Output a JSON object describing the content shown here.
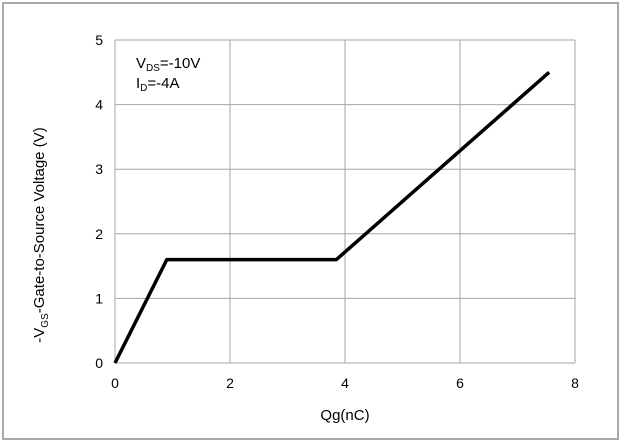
{
  "chart_data": {
    "type": "line",
    "xlabel": "Qg(nC)",
    "ylabel_prefix": "-V",
    "ylabel_sub": "GS",
    "ylabel_suffix": "-Gate-to-Source  Voltage (V)",
    "xlim": [
      0,
      8
    ],
    "ylim": [
      0,
      5
    ],
    "x_ticks": [
      0,
      2,
      4,
      6,
      8
    ],
    "y_ticks": [
      0,
      1,
      2,
      3,
      4,
      5
    ],
    "grid": true,
    "annotations": [
      {
        "main": "V",
        "sub": "DS",
        "rest": "=-10V"
      },
      {
        "main": "I",
        "sub": "D",
        "rest": "=-4A"
      }
    ],
    "series": [
      {
        "color": "#000000",
        "x": [
          0,
          0.9,
          3.85,
          7.55
        ],
        "y": [
          0,
          1.6,
          1.6,
          4.5
        ]
      }
    ]
  }
}
